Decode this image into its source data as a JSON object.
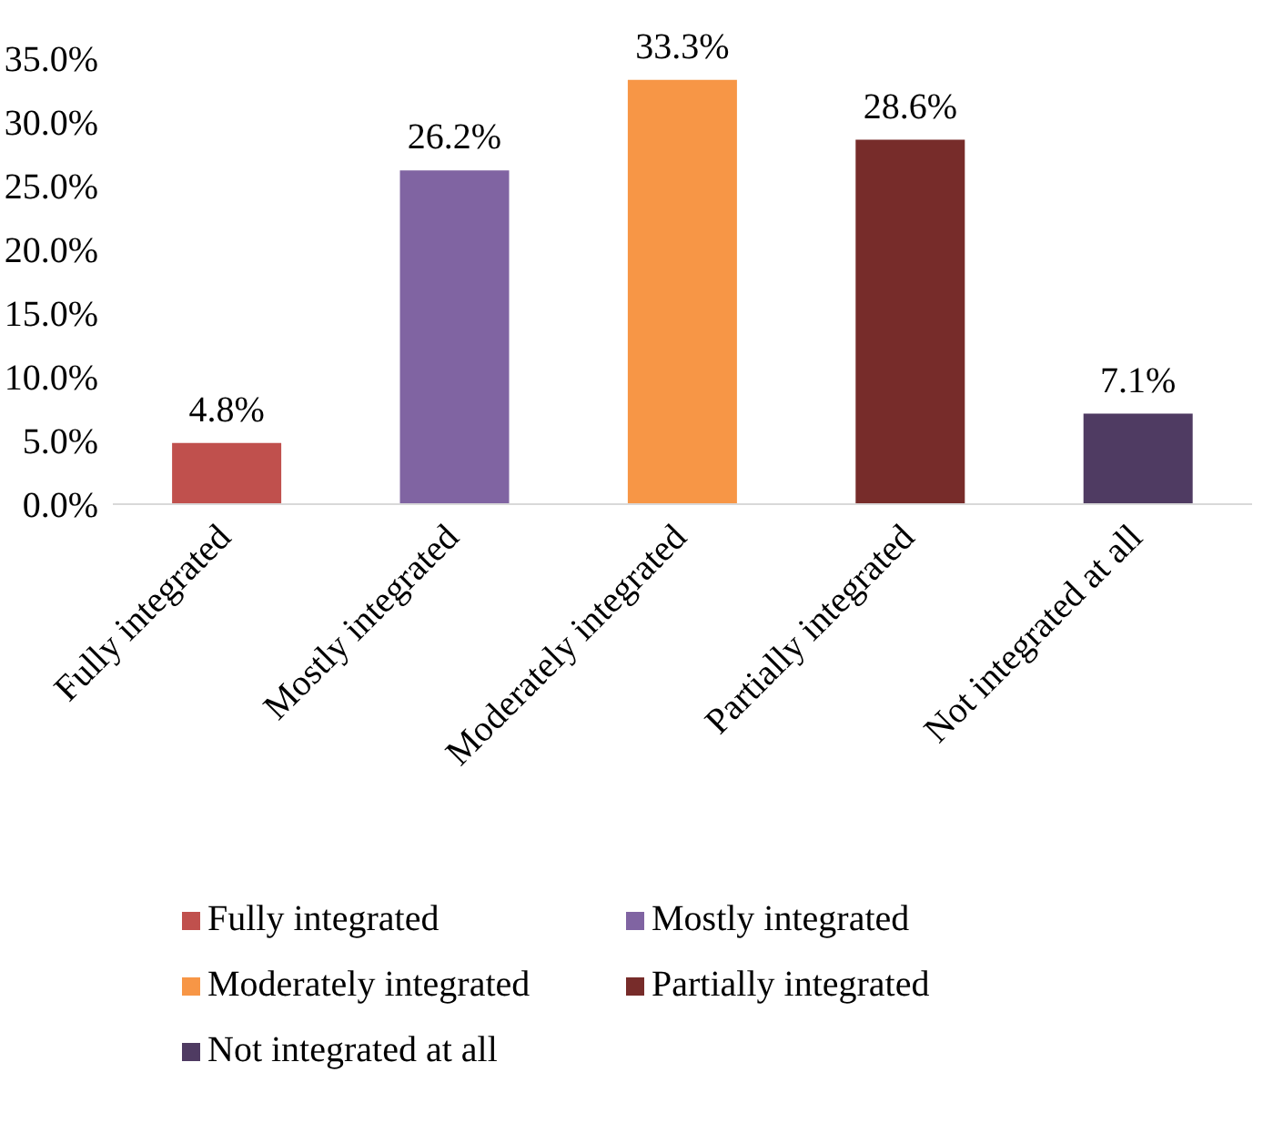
{
  "chart_data": {
    "type": "bar",
    "categories": [
      "Fully integrated",
      "Mostly integrated",
      "Moderately integrated",
      "Partially integrated",
      "Not integrated at all"
    ],
    "stacked": true,
    "series": [
      {
        "name": "Fully integrated",
        "color": "#c0504d",
        "values": [
          4.8,
          null,
          null,
          null,
          null
        ],
        "value_labels": [
          "4.8%",
          null,
          null,
          null,
          null
        ]
      },
      {
        "name": "Mostly integrated",
        "color": "#8064a2",
        "values": [
          null,
          26.2,
          null,
          null,
          null
        ],
        "value_labels": [
          null,
          "26.2%",
          null,
          null,
          null
        ]
      },
      {
        "name": "Moderately integrated",
        "color": "#f79646",
        "values": [
          null,
          null,
          33.3,
          null,
          null
        ],
        "value_labels": [
          null,
          null,
          "33.3%",
          null,
          null
        ]
      },
      {
        "name": "Partially integrated",
        "color": "#772c2a",
        "values": [
          null,
          null,
          null,
          28.6,
          null
        ],
        "value_labels": [
          null,
          null,
          null,
          "28.6%",
          null
        ]
      },
      {
        "name": "Not integrated at all",
        "color": "#4f3b62",
        "values": [
          null,
          null,
          null,
          null,
          7.1
        ],
        "value_labels": [
          null,
          null,
          null,
          null,
          "7.1%"
        ]
      }
    ],
    "ylim": [
      0,
      35
    ],
    "yticks": [
      {
        "value": 0,
        "label": "0.0%"
      },
      {
        "value": 5,
        "label": "5.0%"
      },
      {
        "value": 10,
        "label": "10.0%"
      },
      {
        "value": 15,
        "label": "15.0%"
      },
      {
        "value": 20,
        "label": "20.0%"
      },
      {
        "value": 25,
        "label": "25.0%"
      },
      {
        "value": 30,
        "label": "30.0%"
      },
      {
        "value": 35,
        "label": "35.0%"
      }
    ],
    "grid": false,
    "legend": "bottom"
  }
}
